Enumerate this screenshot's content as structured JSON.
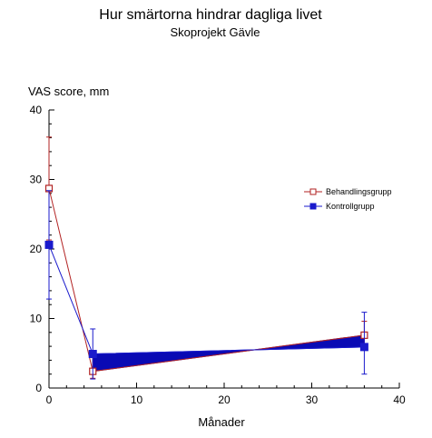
{
  "chart_data": {
    "type": "line",
    "title": "Hur smärtorna hindrar dagliga livet",
    "subtitle": "Skoprojekt Gävle",
    "xlabel": "Månader",
    "ylabel": "VAS score, mm",
    "xlim": [
      0,
      40
    ],
    "ylim": [
      0,
      40
    ],
    "x_ticks": [
      "0",
      "10",
      "20",
      "30",
      "40"
    ],
    "y_ticks": [
      "0",
      "10",
      "20",
      "30",
      "40"
    ],
    "legend_position": "right",
    "x": [
      0,
      5,
      36
    ],
    "series": [
      {
        "name": "Behandlingsgrupp",
        "color": "#b22222",
        "marker": "open-square",
        "values": [
          28.7,
          2.4,
          7.6
        ],
        "error_low": [
          21.3,
          1.4,
          5.6
        ],
        "error_high": [
          36.1,
          5.2,
          9.6
        ]
      },
      {
        "name": "Kontrollgrupp",
        "color": "#1a1acc",
        "marker": "filled-square",
        "values": [
          20.6,
          4.9,
          5.9
        ],
        "error_low": [
          12.8,
          1.3,
          2.0
        ],
        "error_high": [
          28.4,
          8.5,
          10.9
        ]
      }
    ],
    "shaded_band": {
      "color": "#0a0ab4",
      "between_series": [
        "Behandlingsgrupp",
        "Kontrollgrupp"
      ],
      "x_range": [
        5,
        36
      ]
    }
  }
}
